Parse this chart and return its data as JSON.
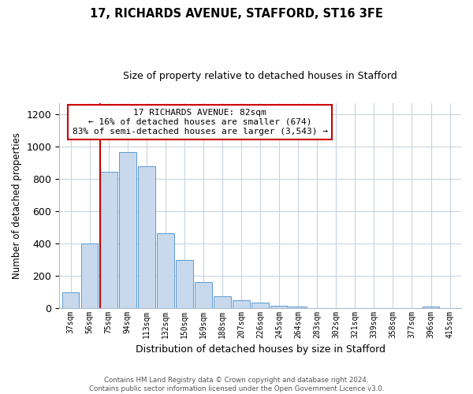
{
  "title_line1": "17, RICHARDS AVENUE, STAFFORD, ST16 3FE",
  "title_line2": "Size of property relative to detached houses in Stafford",
  "xlabel": "Distribution of detached houses by size in Stafford",
  "ylabel": "Number of detached properties",
  "bar_labels": [
    "37sqm",
    "56sqm",
    "75sqm",
    "94sqm",
    "113sqm",
    "132sqm",
    "150sqm",
    "169sqm",
    "188sqm",
    "207sqm",
    "226sqm",
    "245sqm",
    "264sqm",
    "283sqm",
    "302sqm",
    "321sqm",
    "339sqm",
    "358sqm",
    "377sqm",
    "396sqm",
    "415sqm"
  ],
  "bar_values": [
    95,
    400,
    845,
    965,
    875,
    460,
    295,
    160,
    70,
    48,
    30,
    15,
    10,
    0,
    0,
    0,
    0,
    0,
    0,
    10,
    0
  ],
  "bar_color": "#c8d9ed",
  "bar_edge_color": "#5b9bd5",
  "property_line_color": "#cc0000",
  "ylim": [
    0,
    1270
  ],
  "yticks": [
    0,
    200,
    400,
    600,
    800,
    1000,
    1200
  ],
  "annotation_title": "17 RICHARDS AVENUE: 82sqm",
  "annotation_line1": "← 16% of detached houses are smaller (674)",
  "annotation_line2": "83% of semi-detached houses are larger (3,543) →",
  "annotation_box_color": "#ffffff",
  "annotation_box_edge": "#cc0000",
  "footer_line1": "Contains HM Land Registry data © Crown copyright and database right 2024.",
  "footer_line2": "Contains public sector information licensed under the Open Government Licence v3.0.",
  "background_color": "#ffffff",
  "grid_color": "#c8d4e0"
}
